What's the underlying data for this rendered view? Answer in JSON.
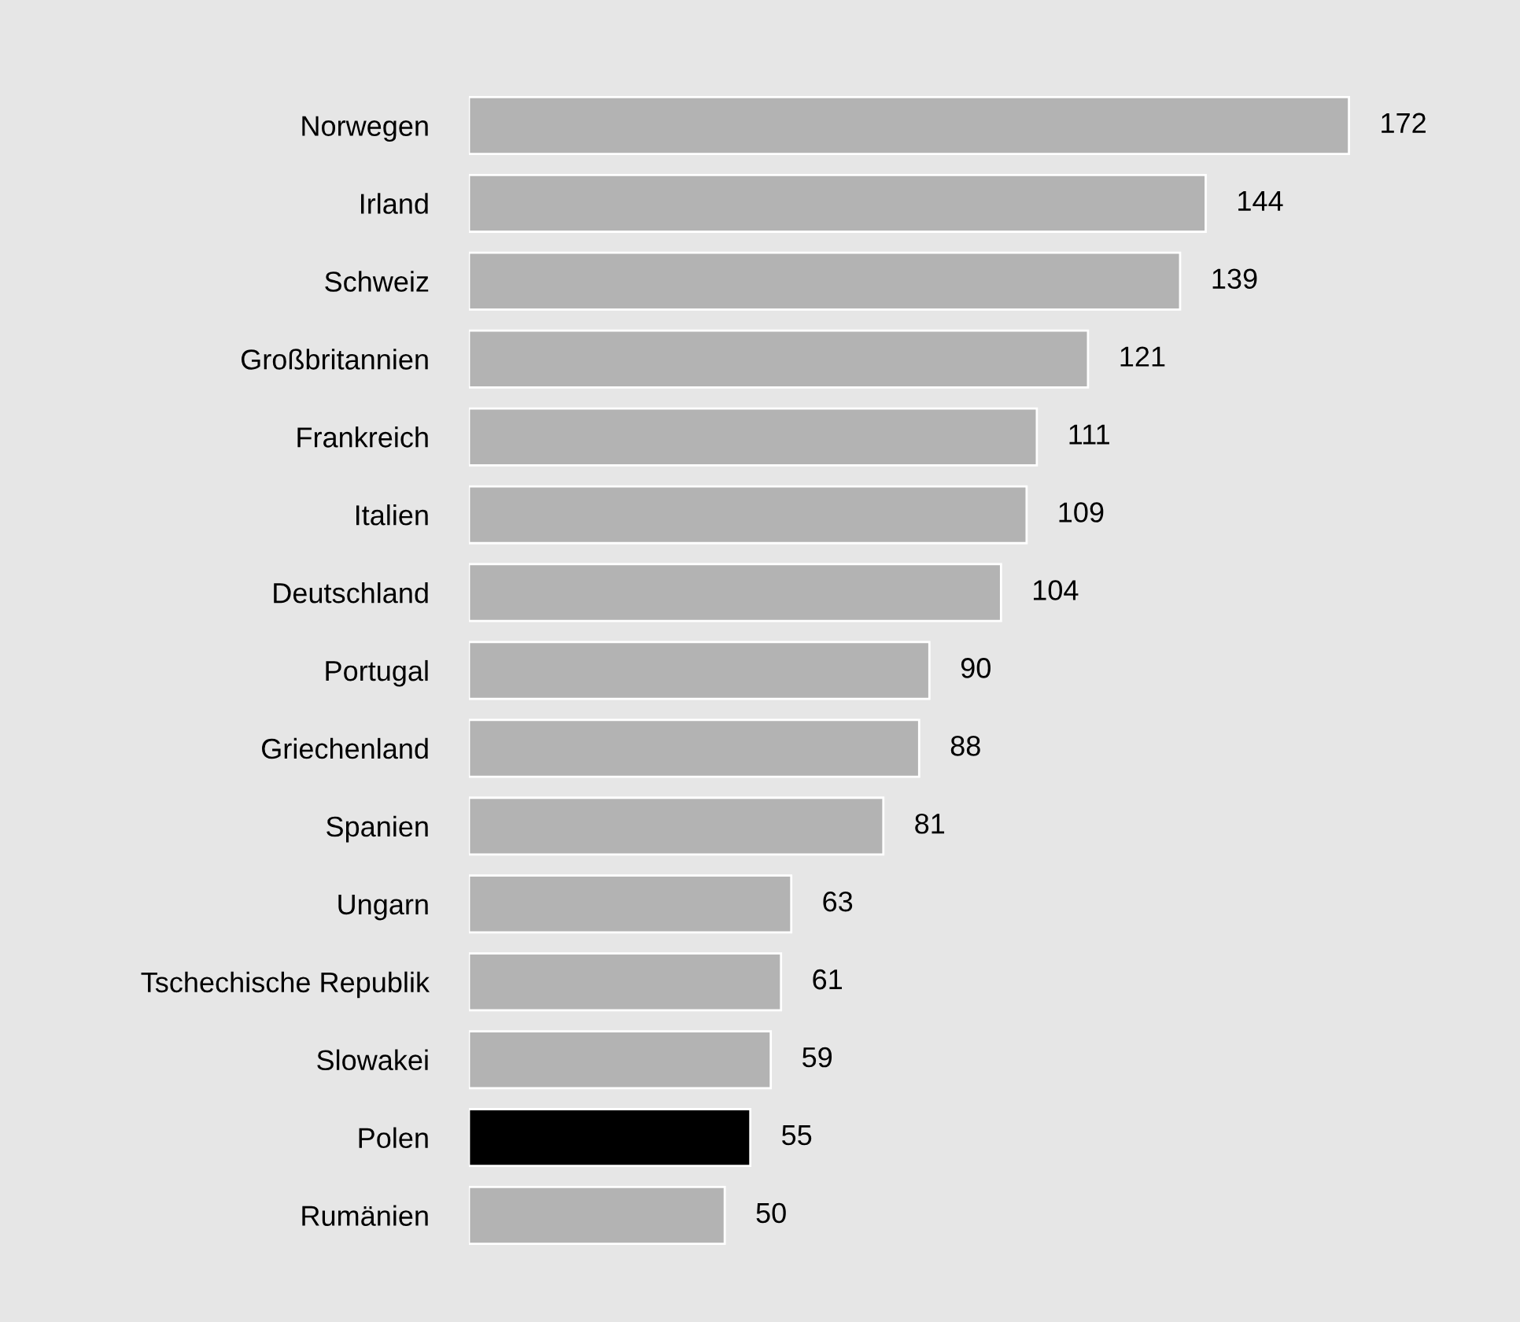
{
  "chart_data": {
    "type": "bar",
    "orientation": "horizontal",
    "categories": [
      "Norwegen",
      "Irland",
      "Schweiz",
      "Großbritannien",
      "Frankreich",
      "Italien",
      "Deutschland",
      "Portugal",
      "Griechenland",
      "Spanien",
      "Ungarn",
      "Tschechische Republik",
      "Slowakei",
      "Polen",
      "Rumänien"
    ],
    "values": [
      172,
      144,
      139,
      121,
      111,
      109,
      104,
      90,
      88,
      81,
      63,
      61,
      59,
      55,
      50
    ],
    "colors": [
      "#b3b3b3",
      "#b3b3b3",
      "#b3b3b3",
      "#b3b3b3",
      "#b3b3b3",
      "#b3b3b3",
      "#b3b3b3",
      "#b3b3b3",
      "#b3b3b3",
      "#b3b3b3",
      "#b3b3b3",
      "#b3b3b3",
      "#b3b3b3",
      "#000000",
      "#b3b3b3"
    ],
    "data_labels": true
  }
}
